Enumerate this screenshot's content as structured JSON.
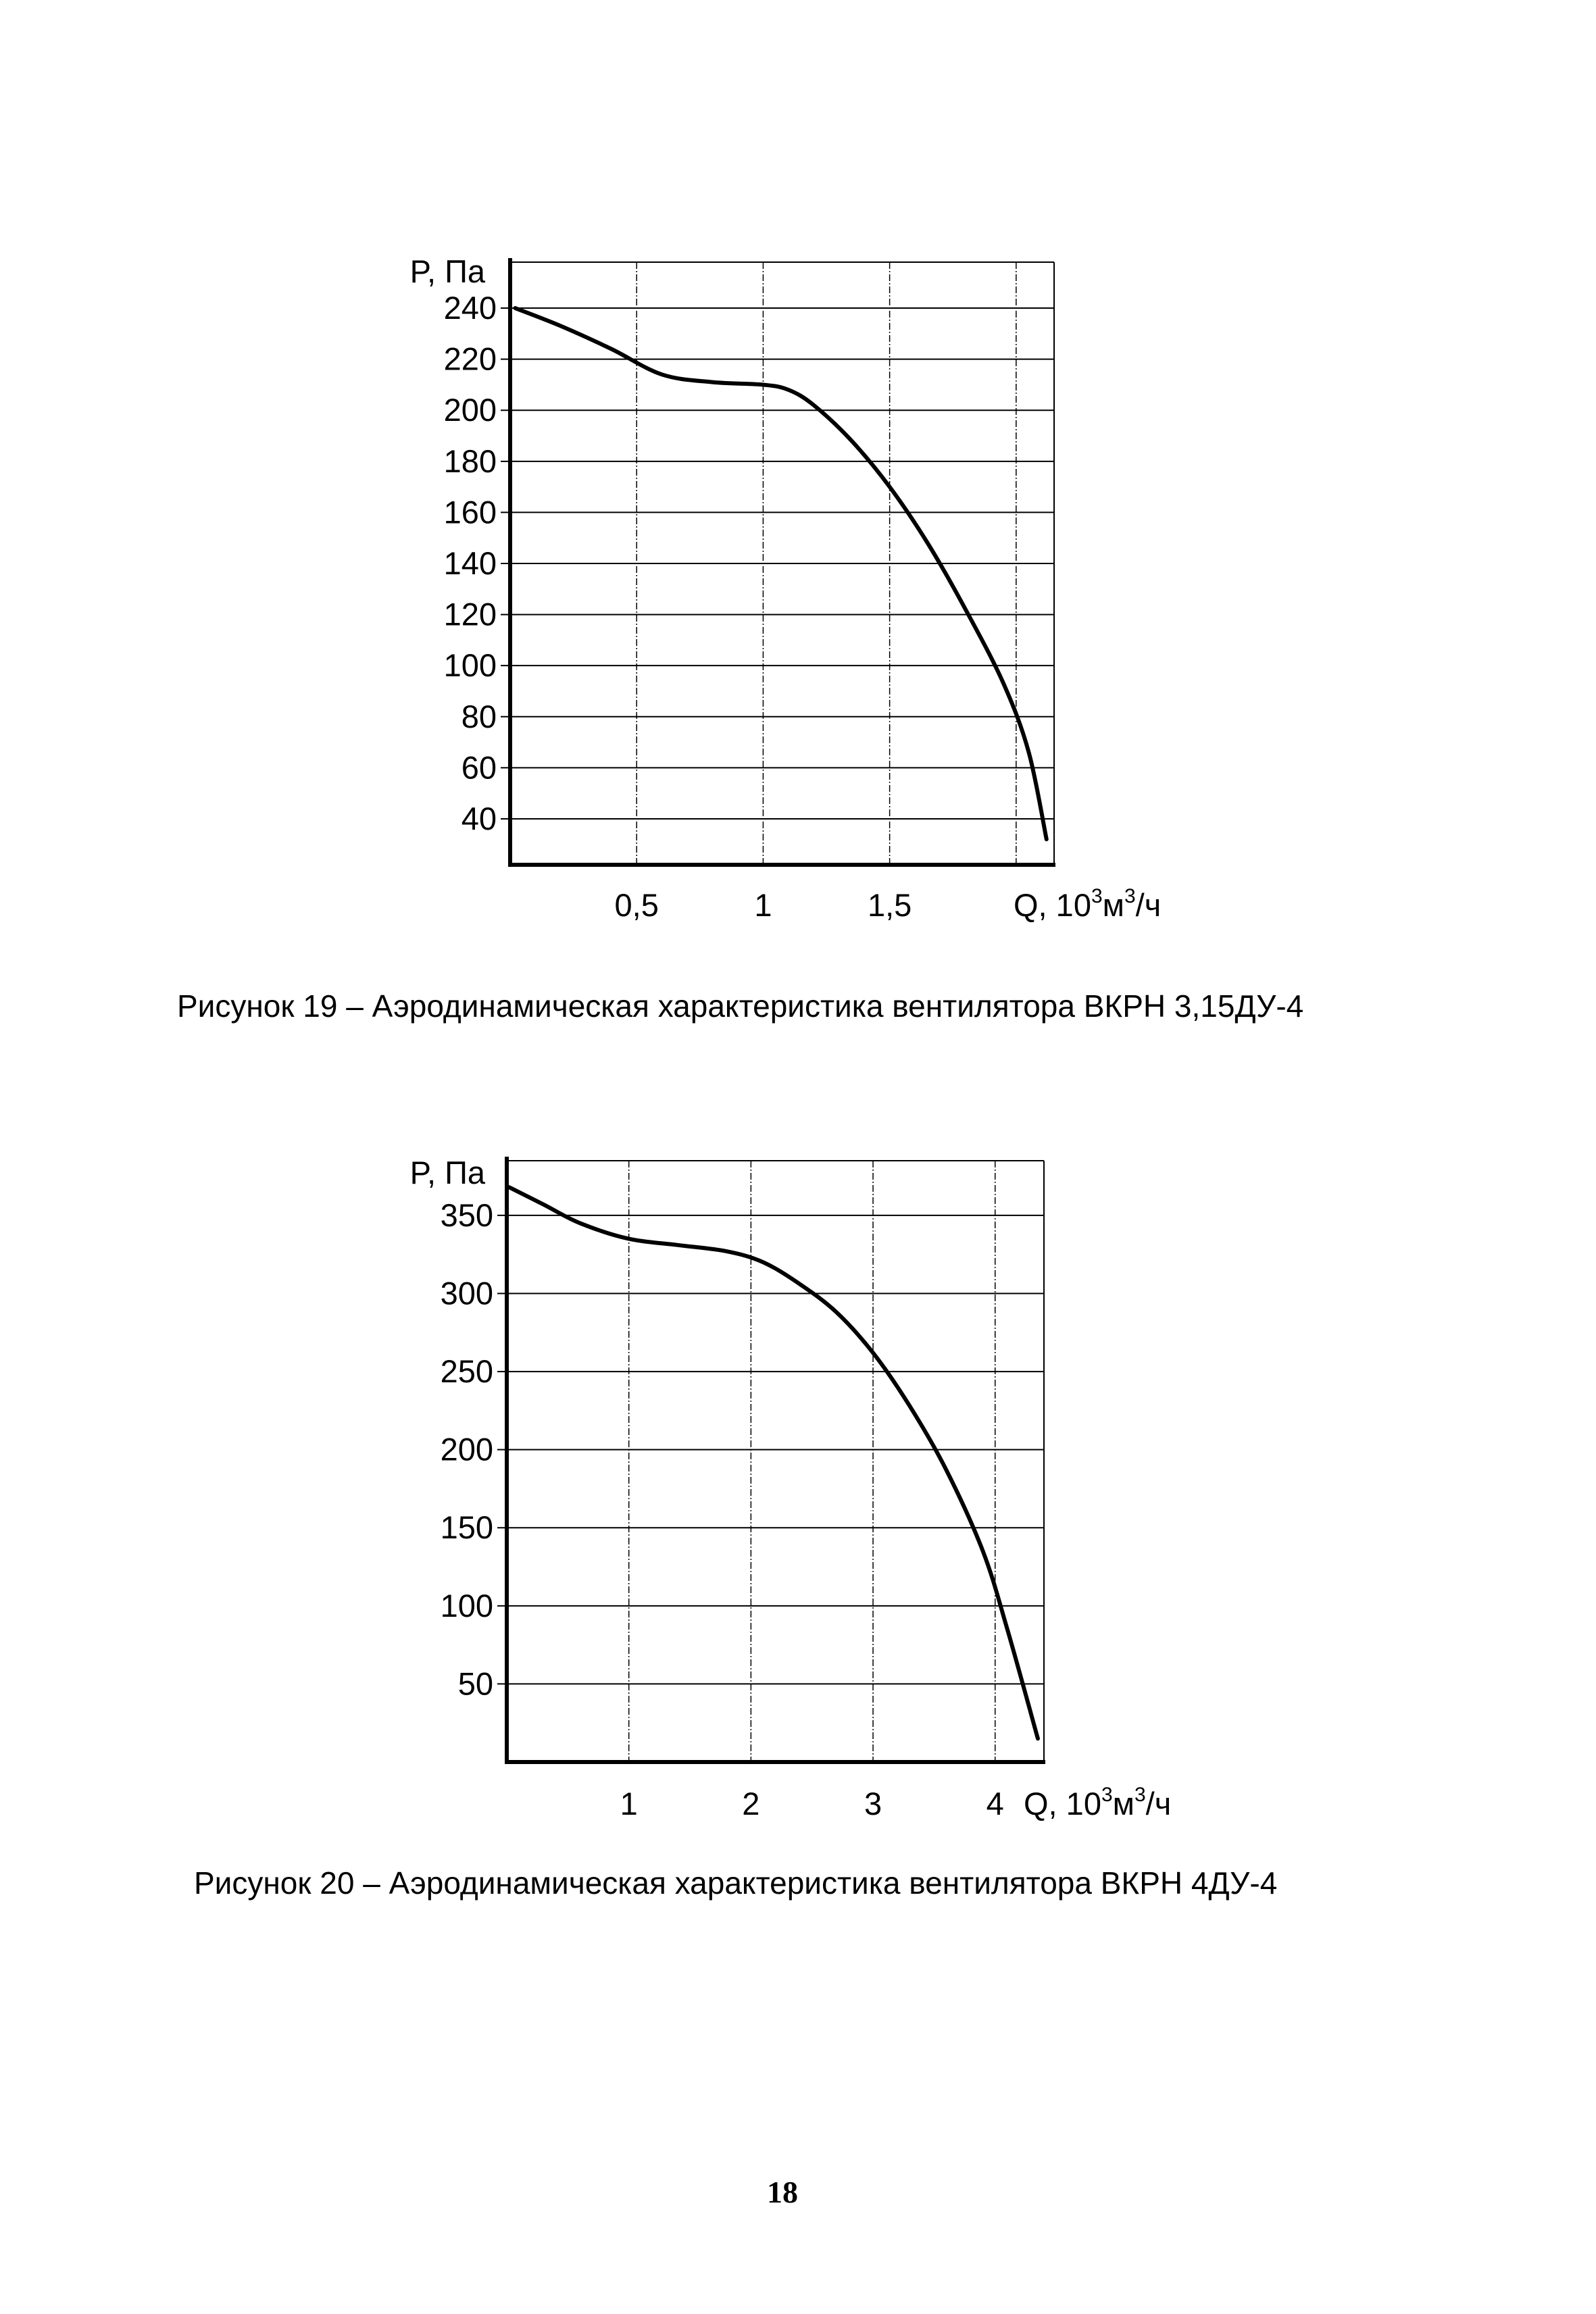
{
  "chart_data": [
    {
      "type": "line",
      "ylabel": "P, Па",
      "xlabel_base": "Q, 10",
      "xlabel_sup1": "3",
      "xlabel_mid": "м",
      "xlabel_sup2": "3",
      "xlabel_end": "/ч",
      "xlim": [
        0,
        2.15
      ],
      "ylim": [
        22,
        258
      ],
      "x_ticks": [
        0.5,
        1,
        1.5,
        2
      ],
      "x_tick_labels": [
        "0,5",
        "1",
        "1,5",
        ""
      ],
      "y_ticks": [
        40,
        60,
        80,
        100,
        120,
        140,
        160,
        180,
        200,
        220,
        240
      ],
      "y_tick_labels": [
        "40",
        "60",
        "80",
        "100",
        "120",
        "140",
        "160",
        "180",
        "200",
        "220",
        "240"
      ],
      "grid": true,
      "series": [
        {
          "name": "ВКРН 3,15ДУ-4",
          "x": [
            0.02,
            0.2,
            0.4,
            0.6,
            0.8,
            1.0,
            1.1,
            1.2,
            1.35,
            1.5,
            1.65,
            1.8,
            1.95,
            2.05,
            2.12
          ],
          "y": [
            240,
            233,
            224,
            214,
            211,
            210,
            208,
            202,
            188,
            170,
            148,
            122,
            93,
            66,
            32
          ]
        }
      ],
      "caption": "Рисунок 19 – Аэродинамическая характеристика вентилятора ВКРН 3,15ДУ-4"
    },
    {
      "type": "line",
      "ylabel": "P, Па",
      "xlabel_base": "Q, 10",
      "xlabel_sup1": "3",
      "xlabel_mid": "м",
      "xlabel_sup2": "3",
      "xlabel_end": "/ч",
      "xlim": [
        0,
        4.4
      ],
      "ylim": [
        0,
        385
      ],
      "x_ticks": [
        1,
        2,
        3,
        4
      ],
      "x_tick_labels": [
        "1",
        "2",
        "3",
        "4"
      ],
      "y_ticks": [
        50,
        100,
        150,
        200,
        250,
        300,
        350
      ],
      "y_tick_labels": [
        "50",
        "100",
        "150",
        "200",
        "250",
        "300",
        "350"
      ],
      "grid": true,
      "series": [
        {
          "name": "ВКРН 4ДУ-4",
          "x": [
            0.02,
            0.3,
            0.6,
            1.0,
            1.4,
            1.8,
            2.1,
            2.4,
            2.7,
            3.0,
            3.3,
            3.6,
            3.9,
            4.1,
            4.35
          ],
          "y": [
            368,
            357,
            345,
            335,
            331,
            327,
            320,
            306,
            288,
            262,
            228,
            187,
            135,
            85,
            15
          ]
        }
      ],
      "caption": "Рисунок 20 – Аэродинамическая характеристика вентилятора ВКРН 4ДУ-4"
    }
  ],
  "page_number": "18"
}
